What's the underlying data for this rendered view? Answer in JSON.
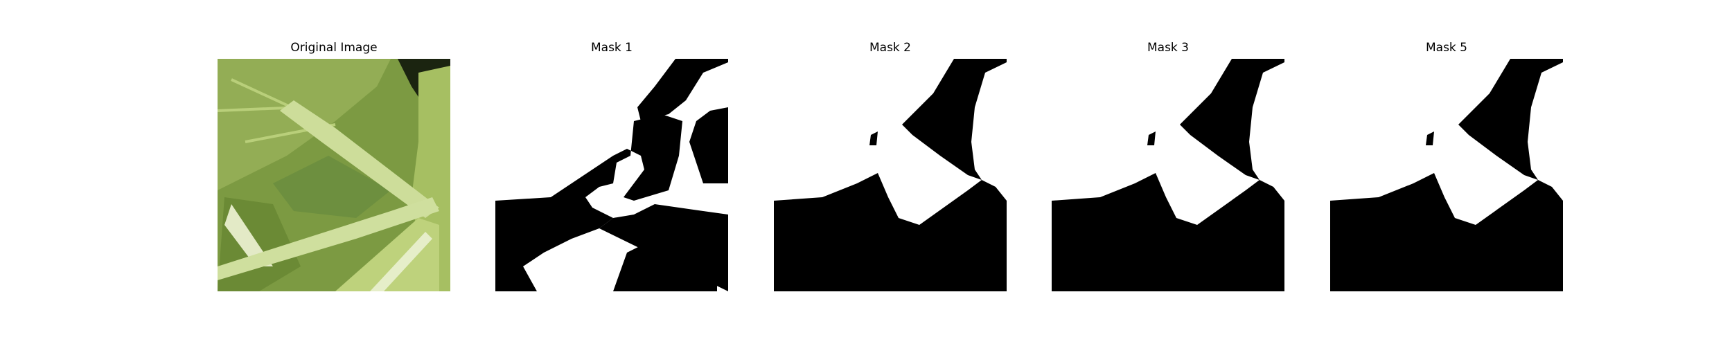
{
  "panels": [
    {
      "title": "Original Image",
      "kind": "photo"
    },
    {
      "title": "Mask 1",
      "kind": "mask"
    },
    {
      "title": "Mask 2",
      "kind": "mask"
    },
    {
      "title": "Mask 3",
      "kind": "mask"
    },
    {
      "title": "Mask 5",
      "kind": "mask"
    }
  ],
  "colors": {
    "mask_foreground": "#ffffff",
    "mask_background": "#000000",
    "leaf_dark": "#5f7f2e",
    "leaf_light": "#b8cf78",
    "stem": "#dfe8b8",
    "shadow": "#1f2a14"
  }
}
